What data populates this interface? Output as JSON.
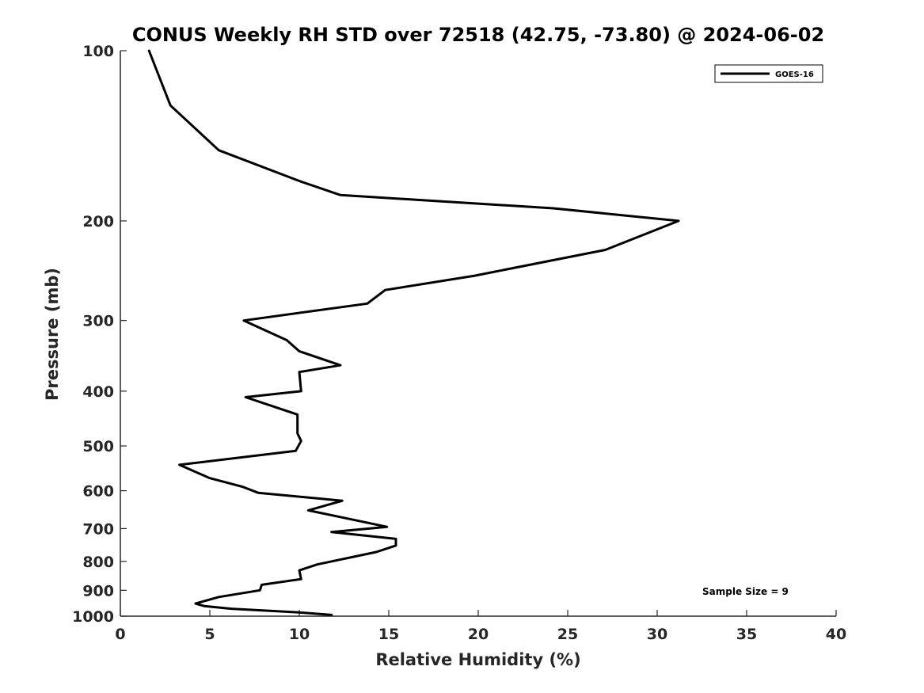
{
  "chart_data": {
    "type": "line",
    "title": "CONUS Weekly RH STD over 72518 (42.75, -73.80) @ 2024-06-02",
    "xlabel": "Relative Humidity (%)",
    "ylabel": "Pressure (mb)",
    "xlim": [
      0,
      40
    ],
    "ylim": [
      100,
      1000
    ],
    "yscale": "log",
    "y_inverted": true,
    "x_ticks": [
      0,
      5,
      10,
      15,
      20,
      25,
      30,
      35,
      40
    ],
    "y_ticks": [
      100,
      200,
      300,
      400,
      500,
      600,
      700,
      800,
      900,
      1000
    ],
    "grid": false,
    "legend_position": "top-right",
    "annotation": "Sample Size = 9",
    "series": [
      {
        "name": "GOES-16",
        "color": "#000000",
        "points": [
          [
            1.6,
            100
          ],
          [
            2.8,
            125
          ],
          [
            5.5,
            150
          ],
          [
            10.0,
            170
          ],
          [
            12.3,
            180
          ],
          [
            24.2,
            190
          ],
          [
            31.2,
            200
          ],
          [
            27.1,
            225
          ],
          [
            19.8,
            250
          ],
          [
            14.8,
            265
          ],
          [
            13.8,
            280
          ],
          [
            6.9,
            300
          ],
          [
            9.3,
            325
          ],
          [
            10.0,
            340
          ],
          [
            12.3,
            360
          ],
          [
            10.0,
            370
          ],
          [
            10.1,
            400
          ],
          [
            7.0,
            410
          ],
          [
            9.9,
            440
          ],
          [
            9.9,
            475
          ],
          [
            10.1,
            490
          ],
          [
            9.8,
            510
          ],
          [
            3.3,
            540
          ],
          [
            5.0,
            570
          ],
          [
            6.8,
            590
          ],
          [
            7.7,
            605
          ],
          [
            12.4,
            625
          ],
          [
            10.5,
            650
          ],
          [
            12.5,
            670
          ],
          [
            14.9,
            695
          ],
          [
            11.8,
            710
          ],
          [
            15.4,
            730
          ],
          [
            15.4,
            750
          ],
          [
            14.3,
            770
          ],
          [
            11.0,
            810
          ],
          [
            10.0,
            830
          ],
          [
            10.1,
            860
          ],
          [
            7.9,
            880
          ],
          [
            7.8,
            900
          ],
          [
            5.5,
            925
          ],
          [
            4.2,
            950
          ],
          [
            4.7,
            960
          ],
          [
            6.2,
            970
          ],
          [
            10.0,
            985
          ],
          [
            11.8,
            995
          ]
        ]
      }
    ]
  }
}
